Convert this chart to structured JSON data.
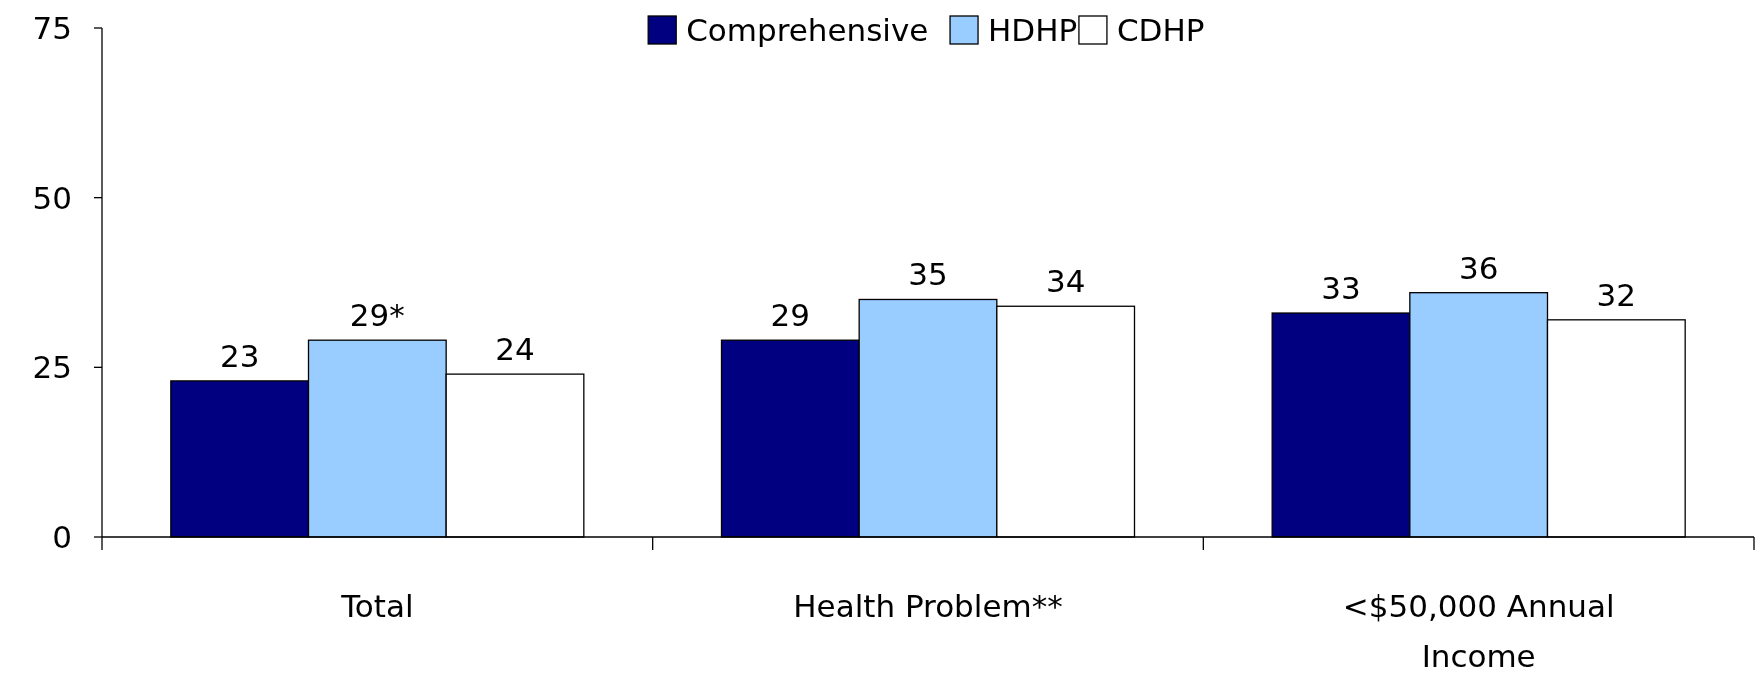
{
  "chart_data": {
    "type": "bar",
    "categories": [
      "Total",
      "Health Problem**",
      "<$50,000 Annual Income"
    ],
    "series": [
      {
        "name": "Comprehensive",
        "color": "#000080",
        "values": [
          23,
          29,
          33
        ],
        "value_labels": [
          "23",
          "29",
          "33"
        ]
      },
      {
        "name": "HDHP",
        "color": "#99ccff",
        "values": [
          29,
          35,
          36
        ],
        "value_labels": [
          "29*",
          "35",
          "36"
        ]
      },
      {
        "name": "CDHP",
        "color": "#ffffff",
        "values": [
          24,
          34,
          32
        ],
        "value_labels": [
          "24",
          "34",
          "32"
        ]
      }
    ],
    "ylim": [
      0,
      75
    ],
    "yticks": [
      0,
      25,
      50,
      75
    ],
    "grid": false,
    "legend": "top"
  }
}
